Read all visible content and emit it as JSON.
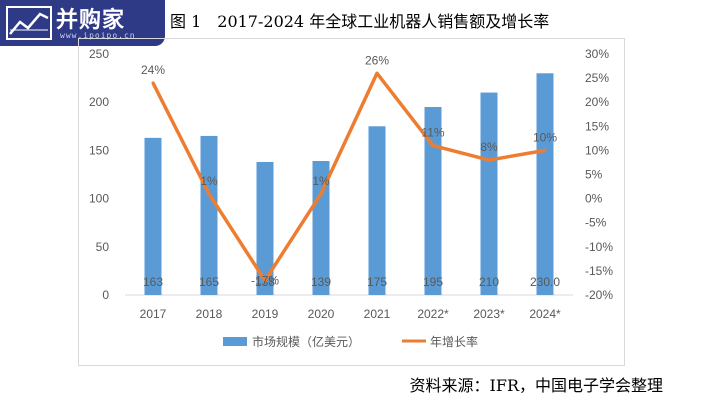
{
  "figure": {
    "title": "图 1　2017-2024 年全球工业机器人销售额及增长率",
    "source": "资料来源：IFR，中国电子学会整理"
  },
  "watermark": {
    "brand": "并购家",
    "url": "www.ipoipo.cn",
    "color": "#2f3a86"
  },
  "chart_data": {
    "type": "bar",
    "categories": [
      "2017",
      "2018",
      "2019",
      "2020",
      "2021",
      "2022*",
      "2023*",
      "2024*"
    ],
    "series": [
      {
        "name": "市场规模（亿美元）",
        "type": "bar",
        "axis": "left",
        "color": "#5b9bd5",
        "values": [
          163,
          165,
          138,
          139,
          175,
          195,
          210,
          230.0
        ],
        "labels": [
          "163",
          "165",
          "138",
          "139",
          "175",
          "195",
          "210",
          "230.0"
        ]
      },
      {
        "name": "年增长率",
        "type": "line",
        "axis": "right",
        "color": "#ed7d31",
        "values": [
          24,
          1,
          -17,
          1,
          26,
          11,
          8,
          10
        ],
        "labels": [
          "24%",
          "1%",
          "-17%",
          "1%",
          "26%",
          "11%",
          "8%",
          "10%"
        ]
      }
    ],
    "y_left": {
      "ticks": [
        0,
        50,
        100,
        150,
        200,
        250
      ],
      "ylim": [
        0,
        250
      ]
    },
    "y_right": {
      "ticks": [
        "-20%",
        "-15%",
        "-10%",
        "-5%",
        "0%",
        "5%",
        "10%",
        "15%",
        "20%",
        "25%",
        "30%"
      ],
      "ylim": [
        -20,
        30
      ]
    },
    "grid": false,
    "legend": "bottom"
  }
}
